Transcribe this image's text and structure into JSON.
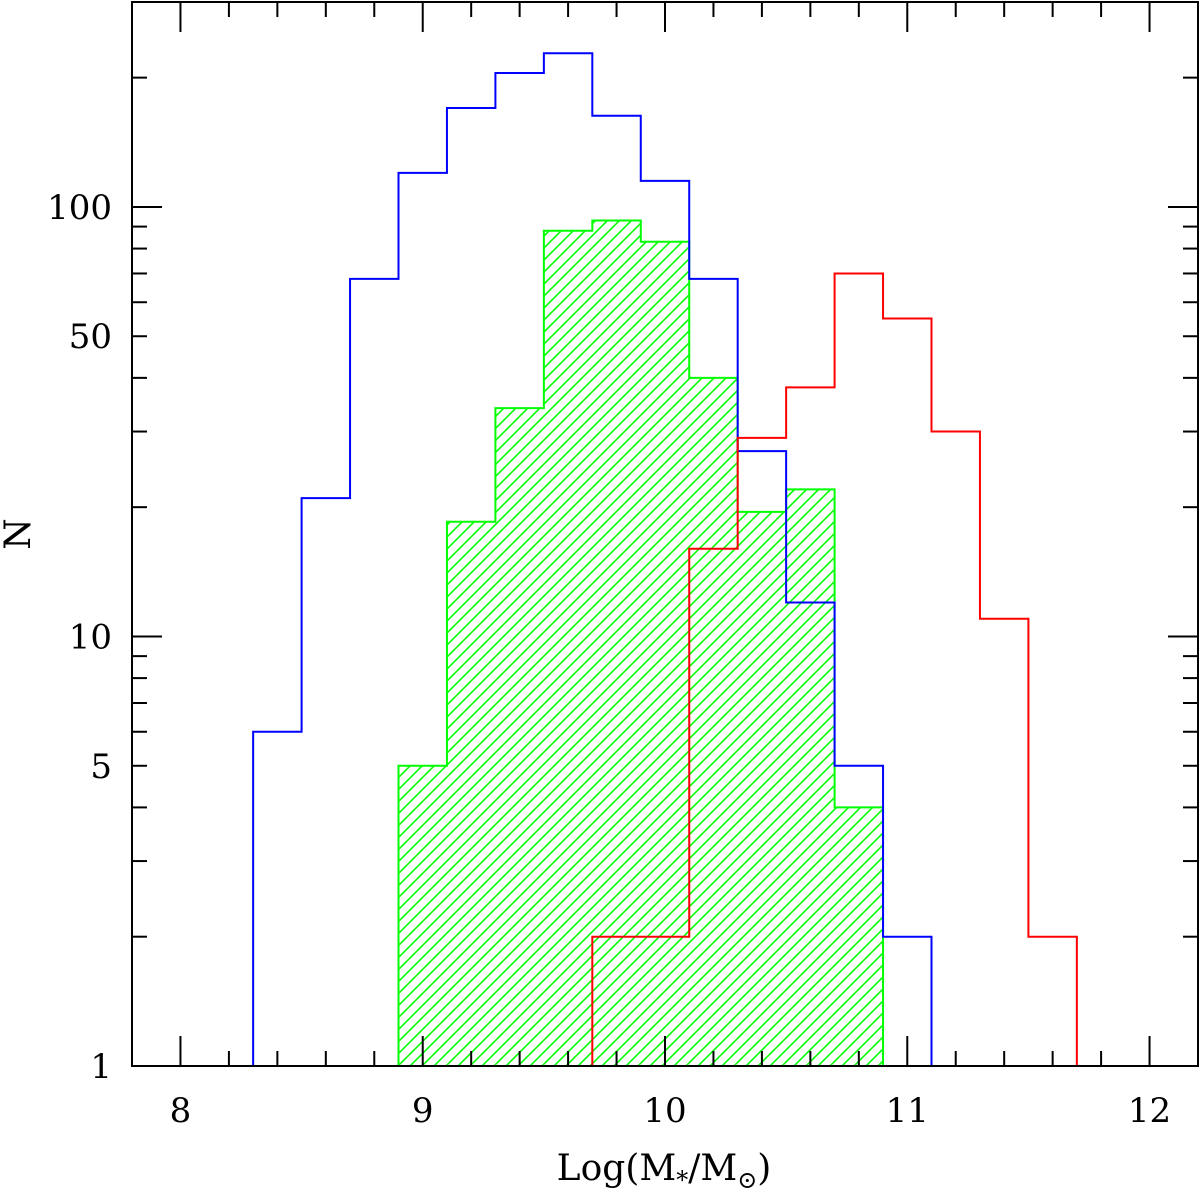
{
  "chart_data": {
    "type": "histogram",
    "xlabel": "Log(M",
    "xlabel_sub1": "*",
    "xlabel_mid": "/M",
    "xlabel_sub2": "⊙",
    "xlabel_end": ")",
    "ylabel": "N",
    "xlim": [
      7.8,
      12.2
    ],
    "ylim": [
      1,
      300
    ],
    "yscale": "log",
    "x_ticks_major": [
      8,
      9,
      10,
      11,
      12
    ],
    "x_tick_labels": [
      "8",
      "9",
      "10",
      "11",
      "12"
    ],
    "y_tick_labels": [
      {
        "value": 1,
        "label": "1"
      },
      {
        "value": 5,
        "label": "5"
      },
      {
        "value": 10,
        "label": "10"
      },
      {
        "value": 50,
        "label": "50"
      },
      {
        "value": 100,
        "label": "100"
      }
    ],
    "bin_width": 0.2,
    "series": [
      {
        "color": "#0000ff",
        "fill": "none",
        "bins": [
          {
            "x0": 8.1,
            "n": 1
          },
          {
            "x0": 8.3,
            "n": 6
          },
          {
            "x0": 8.5,
            "n": 21
          },
          {
            "x0": 8.7,
            "n": 68
          },
          {
            "x0": 8.9,
            "n": 120
          },
          {
            "x0": 9.1,
            "n": 170
          },
          {
            "x0": 9.3,
            "n": 205
          },
          {
            "x0": 9.5,
            "n": 228
          },
          {
            "x0": 9.7,
            "n": 163
          },
          {
            "x0": 9.9,
            "n": 115
          },
          {
            "x0": 10.1,
            "n": 68
          },
          {
            "x0": 10.3,
            "n": 27
          },
          {
            "x0": 10.5,
            "n": 12
          },
          {
            "x0": 10.7,
            "n": 5
          },
          {
            "x0": 10.9,
            "n": 2
          },
          {
            "x0": 11.1,
            "n": 1
          },
          {
            "x0": 11.3,
            "n": 1
          }
        ]
      },
      {
        "color": "#00ff00",
        "fill": "hatched",
        "bins": [
          {
            "x0": 8.7,
            "n": 1
          },
          {
            "x0": 8.9,
            "n": 5
          },
          {
            "x0": 9.1,
            "n": 18.5
          },
          {
            "x0": 9.3,
            "n": 34
          },
          {
            "x0": 9.5,
            "n": 88
          },
          {
            "x0": 9.7,
            "n": 93
          },
          {
            "x0": 9.9,
            "n": 83
          },
          {
            "x0": 10.1,
            "n": 40
          },
          {
            "x0": 10.3,
            "n": 19.5
          },
          {
            "x0": 10.5,
            "n": 22
          },
          {
            "x0": 10.7,
            "n": 4
          },
          {
            "x0": 10.9,
            "n": 1
          },
          {
            "x0": 11.1,
            "n": 1
          }
        ]
      },
      {
        "color": "#ff0000",
        "fill": "none",
        "bins": [
          {
            "x0": 9.7,
            "n": 2
          },
          {
            "x0": 9.9,
            "n": 2
          },
          {
            "x0": 10.1,
            "n": 16
          },
          {
            "x0": 10.3,
            "n": 29
          },
          {
            "x0": 10.5,
            "n": 38
          },
          {
            "x0": 10.7,
            "n": 70
          },
          {
            "x0": 10.9,
            "n": 55
          },
          {
            "x0": 11.1,
            "n": 30
          },
          {
            "x0": 11.3,
            "n": 11
          },
          {
            "x0": 11.5,
            "n": 2
          }
        ]
      }
    ]
  }
}
